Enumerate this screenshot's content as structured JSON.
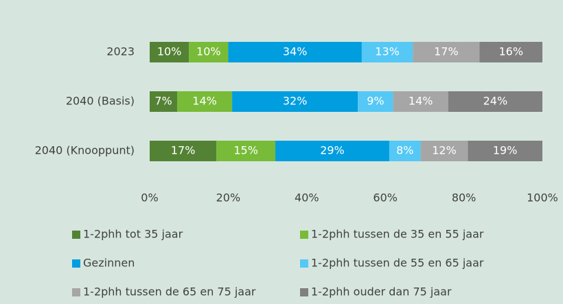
{
  "chart_data": {
    "type": "stacked_bar_horizontal",
    "categories": [
      "2023",
      "2040 (Basis)",
      "2040 (Knooppunt)"
    ],
    "series": [
      {
        "name": "1-2phh tot 35 jaar",
        "color": "#548235",
        "values": [
          10,
          7,
          17
        ],
        "value_labels": [
          "10%",
          "7%",
          "17%"
        ]
      },
      {
        "name": "1-2phh tussen de 35 en 55 jaar",
        "color": "#78bb38",
        "values": [
          10,
          14,
          15
        ],
        "value_labels": [
          "10%",
          "14%",
          "15%"
        ]
      },
      {
        "name": "Gezinnen",
        "color": "#009ddf",
        "values": [
          34,
          32,
          29
        ],
        "value_labels": [
          "34%",
          "32%",
          "29%"
        ]
      },
      {
        "name": "1-2phh tussen de 55 en 65 jaar",
        "color": "#55c8f5",
        "values": [
          13,
          9,
          8
        ],
        "value_labels": [
          "13%",
          "9%",
          "8%"
        ]
      },
      {
        "name": "1-2phh tussen de 65 en 75 jaar",
        "color": "#a6a6a6",
        "values": [
          17,
          14,
          12
        ],
        "value_labels": [
          "17%",
          "14%",
          "12%"
        ]
      },
      {
        "name": "1-2phh ouder dan 75 jaar",
        "color": "#808080",
        "values": [
          16,
          24,
          19
        ],
        "value_labels": [
          "16%",
          "24%",
          "19%"
        ]
      }
    ],
    "xlim": [
      0,
      100
    ],
    "xticks": [
      {
        "value": 0,
        "label": "0%"
      },
      {
        "value": 20,
        "label": "20%"
      },
      {
        "value": 40,
        "label": "40%"
      },
      {
        "value": 60,
        "label": "60%"
      },
      {
        "value": 80,
        "label": "80%"
      },
      {
        "value": 100,
        "label": "100%"
      }
    ],
    "legend": "bottom"
  }
}
